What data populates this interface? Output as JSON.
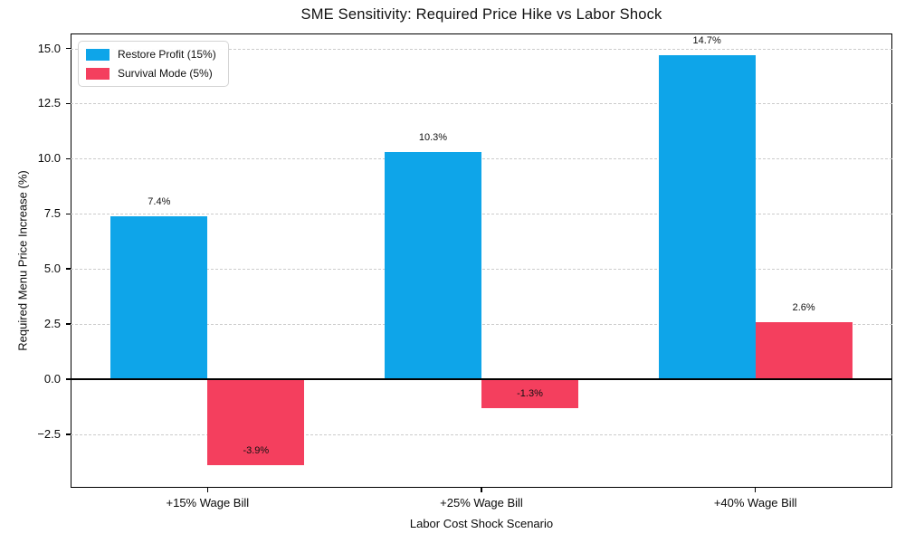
{
  "chart_data": {
    "type": "bar",
    "title": "SME Sensitivity: Required Price Hike vs Labor Shock",
    "xlabel": "Labor Cost Shock Scenario",
    "ylabel": "Required Menu Price Increase (%)",
    "categories": [
      "+15% Wage Bill",
      "+25% Wage Bill",
      "+40% Wage Bill"
    ],
    "series": [
      {
        "name": "Restore Profit (15%)",
        "color": "#0ea5e9",
        "values": [
          7.4,
          10.3,
          14.7
        ],
        "labels": [
          "7.4%",
          "10.3%",
          "14.7%"
        ]
      },
      {
        "name": "Survival Mode (5%)",
        "color": "#f43f5e",
        "values": [
          -3.9,
          -1.3,
          2.6
        ],
        "labels": [
          "-3.9%",
          "-1.3%",
          "2.6%"
        ]
      }
    ],
    "ylim": [
      -4.93,
      15.68
    ],
    "y_ticks": [
      {
        "value": -2.5,
        "label": "−2.5"
      },
      {
        "value": 0.0,
        "label": "0.0"
      },
      {
        "value": 2.5,
        "label": "2.5"
      },
      {
        "value": 5.0,
        "label": "5.0"
      },
      {
        "value": 7.5,
        "label": "7.5"
      },
      {
        "value": 10.0,
        "label": "10.0"
      },
      {
        "value": 12.5,
        "label": "12.5"
      },
      {
        "value": 15.0,
        "label": "15.0"
      }
    ],
    "grid": "horizontal-dashed",
    "zero_line": true,
    "legend_position": "upper-left",
    "colors": {
      "grid": "#cccccc",
      "spine": "#000000",
      "background": "#ffffff"
    }
  }
}
